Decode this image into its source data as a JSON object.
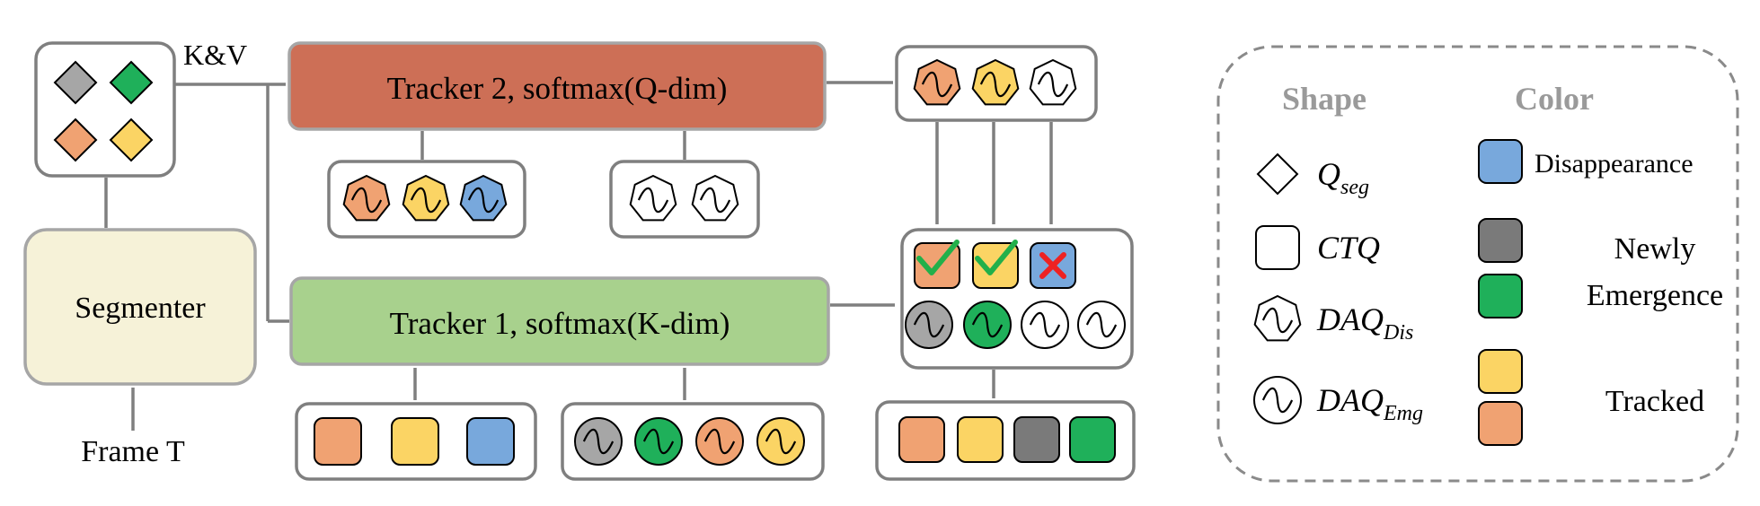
{
  "labels": {
    "kv": "K&V",
    "frame": "Frame T",
    "segmenter": "Segmenter",
    "tracker2": "Tracker 2, softmax(Q-dim)",
    "tracker1": "Tracker 1, softmax(K-dim)"
  },
  "legend": {
    "shape_header": "Shape",
    "color_header": "Color",
    "shapes": [
      {
        "icon": "diamond-icon",
        "symbol": "Q",
        "sub": "seg"
      },
      {
        "icon": "rounded-square-icon",
        "symbol": "CTQ",
        "sub": ""
      },
      {
        "icon": "heptagon-wave-icon",
        "symbol": "DAQ",
        "sub": "Dis"
      },
      {
        "icon": "circle-wave-icon",
        "symbol": "DAQ",
        "sub": "Emg"
      }
    ],
    "colors": [
      {
        "label": "Disappearance",
        "swatches": [
          "#78a8dc"
        ]
      },
      {
        "label": "Newly Emergence",
        "label_lines": [
          "Newly",
          "Emergence"
        ],
        "swatches": [
          "#7a7a7a",
          "#1fb05a"
        ]
      },
      {
        "label": "Tracked",
        "swatches": [
          "#fbd464",
          "#f0a272"
        ]
      }
    ]
  },
  "colors": {
    "gray": "#a6a6a6",
    "dark_gray": "#7a7a7a",
    "green": "#1fb05a",
    "orange": "#f0a272",
    "yellow": "#fbd464",
    "blue": "#78a8dc",
    "white": "#ffffff",
    "tracker2_fill": "#cd6f56",
    "tracker1_fill": "#a8d18d",
    "segmenter_fill": "#f6f2d8",
    "box_stroke": "#7f7f7f",
    "check": "#22b04a",
    "cross": "#ee2222"
  }
}
